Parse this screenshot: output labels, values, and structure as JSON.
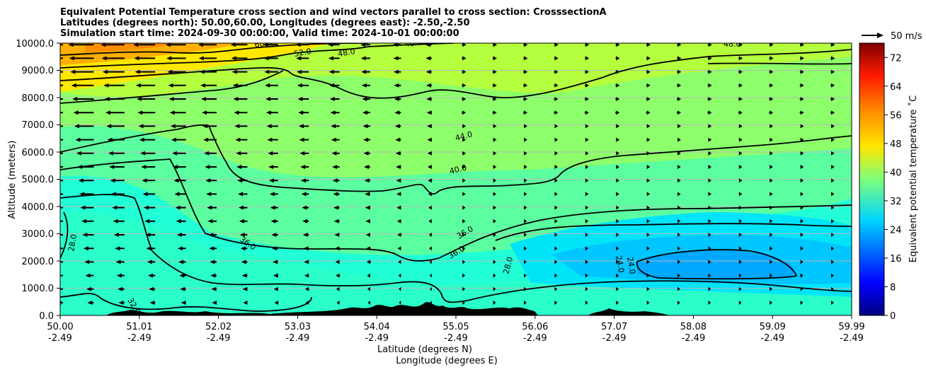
{
  "chart_data": {
    "type": "heatmap",
    "title_lines": [
      "Equivalent Potential Temperature cross section and wind vectors parallel to cross section: CrosssectionA",
      "Latitudes (degrees north): 50.00,60.00, Longitudes (degrees east): -2.50,-2.50",
      "Simulation start time: 2024-09-30 00:00:00, Valid time: 2024-10-01 00:00:00"
    ],
    "ylabel": "Altitude (meters)",
    "xlabel_1": "Latitude (degrees N)",
    "xlabel_2": "Longitude (degrees E)",
    "x_range": [
      50.0,
      59.99
    ],
    "ylim": [
      0,
      10000
    ],
    "y_ticks": [
      "0.0",
      "1000.0",
      "2000.0",
      "3000.0",
      "4000.0",
      "5000.0",
      "6000.0",
      "7000.0",
      "8000.0",
      "9000.0",
      "10000.0"
    ],
    "x_ticks_lat": [
      "50.00",
      "51.01",
      "52.02",
      "53.03",
      "54.04",
      "55.05",
      "56.06",
      "57.07",
      "58.08",
      "59.09",
      "59.99"
    ],
    "x_ticks_lon": [
      "-2.49",
      "-2.49",
      "-2.49",
      "-2.49",
      "-2.49",
      "-2.49",
      "-2.49",
      "-2.49",
      "-2.49",
      "-2.49",
      "-2.49"
    ],
    "grid": "horizontal",
    "colorbar": {
      "label": "Equivalent potential temperature ˚C",
      "min": 0,
      "max": 76,
      "step": 2,
      "ticks": [
        "0",
        "8",
        "16",
        "24",
        "32",
        "40",
        "48",
        "56",
        "64",
        "72"
      ],
      "colormap": "jet"
    },
    "contour_labels": [
      "60.0",
      "52.0",
      "48.0",
      "48.0",
      "48.0",
      "44.0",
      "40.0",
      "36.0",
      "36.0",
      "36.0",
      "28.0",
      "28.0",
      "24.0",
      "24.0",
      "32.0"
    ],
    "quiver_key": "50 m/s",
    "wind_note": "strong westward (right-to-left) flow upper-left, weak eastward flow lower-right"
  }
}
